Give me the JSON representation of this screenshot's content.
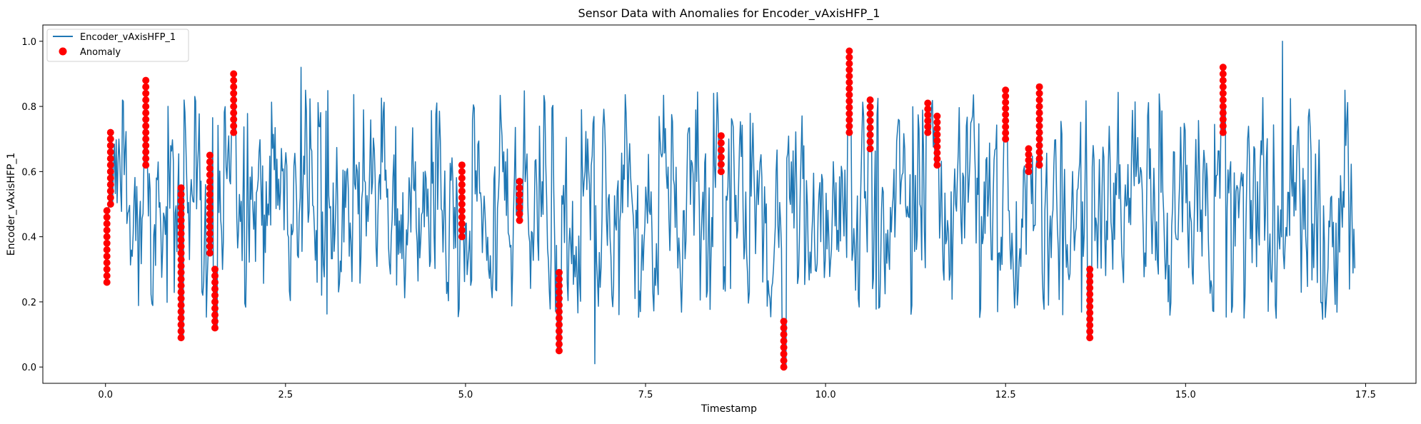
{
  "chart_data": {
    "type": "line",
    "title": "Sensor Data with Anomalies for Encoder_vAxisHFP_1",
    "xlabel": "Timestamp",
    "ylabel": "Encoder_vAxisHFP_1",
    "xlim": [
      -0.87,
      18.2
    ],
    "ylim": [
      -0.05,
      1.05
    ],
    "x_ticks": [
      0.0,
      2.5,
      5.0,
      7.5,
      10.0,
      12.5,
      15.0,
      17.5
    ],
    "x_tick_labels": [
      "0.0",
      "2.5",
      "5.0",
      "7.5",
      "10.0",
      "12.5",
      "15.0",
      "17.5"
    ],
    "y_ticks": [
      0.0,
      0.2,
      0.4,
      0.6,
      0.8,
      1.0
    ],
    "y_tick_labels": [
      "0.0",
      "0.2",
      "0.4",
      "0.6",
      "0.8",
      "1.0"
    ],
    "grid": false,
    "legend_position": "top-left",
    "series": [
      {
        "name": "Encoder_vAxisHFP_1",
        "kind": "line",
        "color": "#1f77b4",
        "x_range": [
          0.0,
          17.35
        ],
        "approx_points": 1400,
        "mean": 0.5,
        "typical_min": 0.15,
        "typical_max": 0.85,
        "extremes": [
          {
            "x": 2.72,
            "y": 0.92
          },
          {
            "x": 6.8,
            "y": 0.01
          },
          {
            "x": 9.4,
            "y": 0.0
          },
          {
            "x": 10.32,
            "y": 0.97
          },
          {
            "x": 16.35,
            "y": 1.0
          }
        ]
      },
      {
        "name": "Anomaly",
        "kind": "scatter",
        "color": "#ff0000",
        "clusters": [
          {
            "x": 0.02,
            "ymin": 0.26,
            "ymax": 0.48
          },
          {
            "x": 0.07,
            "ymin": 0.5,
            "ymax": 0.72
          },
          {
            "x": 0.56,
            "ymin": 0.62,
            "ymax": 0.88
          },
          {
            "x": 1.05,
            "ymin": 0.09,
            "ymax": 0.55
          },
          {
            "x": 1.45,
            "ymin": 0.35,
            "ymax": 0.65
          },
          {
            "x": 1.52,
            "ymin": 0.12,
            "ymax": 0.3
          },
          {
            "x": 1.78,
            "ymin": 0.72,
            "ymax": 0.9
          },
          {
            "x": 4.95,
            "ymin": 0.4,
            "ymax": 0.62
          },
          {
            "x": 5.75,
            "ymin": 0.45,
            "ymax": 0.57
          },
          {
            "x": 6.3,
            "ymin": 0.05,
            "ymax": 0.29
          },
          {
            "x": 8.55,
            "ymin": 0.6,
            "ymax": 0.71
          },
          {
            "x": 9.42,
            "ymin": 0.0,
            "ymax": 0.14
          },
          {
            "x": 10.33,
            "ymin": 0.72,
            "ymax": 0.97
          },
          {
            "x": 10.62,
            "ymin": 0.67,
            "ymax": 0.82
          },
          {
            "x": 11.42,
            "ymin": 0.72,
            "ymax": 0.81
          },
          {
            "x": 11.55,
            "ymin": 0.62,
            "ymax": 0.77
          },
          {
            "x": 12.5,
            "ymin": 0.7,
            "ymax": 0.85
          },
          {
            "x": 12.82,
            "ymin": 0.6,
            "ymax": 0.67
          },
          {
            "x": 12.97,
            "ymin": 0.62,
            "ymax": 0.86
          },
          {
            "x": 13.67,
            "ymin": 0.09,
            "ymax": 0.3
          },
          {
            "x": 15.52,
            "ymin": 0.72,
            "ymax": 0.92
          }
        ]
      }
    ]
  }
}
